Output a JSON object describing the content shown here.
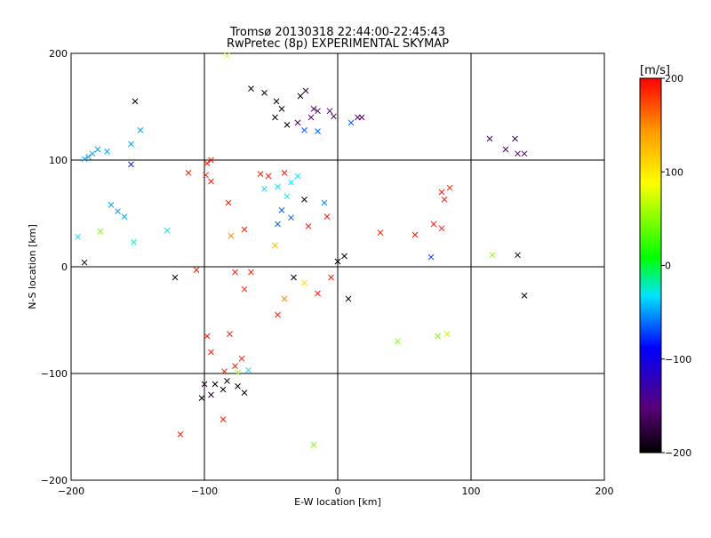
{
  "chart_data": {
    "type": "scatter",
    "title": "Tromsø 20130318 22:44:00-22:45:43",
    "subtitle": "RwPretec (8p) EXPERIMENTAL SKYMAP",
    "xlabel": "E-W location [km]",
    "ylabel": "N-S location [km]",
    "xlim": [
      -200,
      200
    ],
    "ylim": [
      -200,
      200
    ],
    "xticks": [
      -200,
      -100,
      0,
      100,
      200
    ],
    "yticks": [
      -200,
      -100,
      0,
      100,
      200
    ],
    "grid": true,
    "colorbar": {
      "label": "[m/s]",
      "range": [
        -200,
        200
      ],
      "ticks": [
        200,
        100,
        0,
        -100,
        -200
      ],
      "colormap": "rainbow (black-purple-blue-cyan-green-yellow-red)"
    },
    "cross_markers": [
      {
        "x": -65,
        "y": 167,
        "v": -200
      },
      {
        "x": -55,
        "y": 163,
        "v": -200
      },
      {
        "x": -46,
        "y": 155,
        "v": -200
      },
      {
        "x": -42,
        "y": 148,
        "v": -200
      },
      {
        "x": -47,
        "y": 140,
        "v": -200
      },
      {
        "x": -28,
        "y": 160,
        "v": -200
      },
      {
        "x": -24,
        "y": 165,
        "v": -180
      },
      {
        "x": -38,
        "y": 133,
        "v": -200
      },
      {
        "x": -30,
        "y": 135,
        "v": -160
      },
      {
        "x": -18,
        "y": 148,
        "v": -150
      },
      {
        "x": -15,
        "y": 146,
        "v": -150
      },
      {
        "x": -20,
        "y": 140,
        "v": -150
      },
      {
        "x": -6,
        "y": 146,
        "v": -150
      },
      {
        "x": -3,
        "y": 141,
        "v": -170
      },
      {
        "x": -25,
        "y": 128,
        "v": -70
      },
      {
        "x": -15,
        "y": 127,
        "v": -70
      },
      {
        "x": 10,
        "y": 135,
        "v": -70
      },
      {
        "x": 15,
        "y": 140,
        "v": -150
      },
      {
        "x": 18,
        "y": 140,
        "v": -160
      },
      {
        "x": -152,
        "y": 155,
        "v": -200
      },
      {
        "x": -155,
        "y": 96,
        "v": -90
      },
      {
        "x": -187,
        "y": 103,
        "v": -55
      },
      {
        "x": -184,
        "y": 106,
        "v": -55
      },
      {
        "x": -180,
        "y": 110,
        "v": -55
      },
      {
        "x": -190,
        "y": 101,
        "v": -55
      },
      {
        "x": -173,
        "y": 108,
        "v": -55
      },
      {
        "x": -155,
        "y": 115,
        "v": -55
      },
      {
        "x": -148,
        "y": 128,
        "v": -55
      },
      {
        "x": -170,
        "y": 58,
        "v": -55
      },
      {
        "x": -165,
        "y": 52,
        "v": -55
      },
      {
        "x": -160,
        "y": 47,
        "v": -55
      },
      {
        "x": -153,
        "y": 23,
        "v": -30
      },
      {
        "x": -128,
        "y": 34,
        "v": -30
      },
      {
        "x": -195,
        "y": 28,
        "v": -40
      },
      {
        "x": -178,
        "y": 33,
        "v": 40
      },
      {
        "x": -190,
        "y": 4,
        "v": -200
      },
      {
        "x": -122,
        "y": -10,
        "v": -200
      },
      {
        "x": -106,
        "y": -3,
        "v": 190
      },
      {
        "x": -98,
        "y": 97,
        "v": 190
      },
      {
        "x": -99,
        "y": 86,
        "v": 190
      },
      {
        "x": -95,
        "y": 80,
        "v": 190
      },
      {
        "x": -112,
        "y": 88,
        "v": 190
      },
      {
        "x": -58,
        "y": 87,
        "v": 190
      },
      {
        "x": -52,
        "y": 85,
        "v": 190
      },
      {
        "x": -40,
        "y": 88,
        "v": 190
      },
      {
        "x": -55,
        "y": 73,
        "v": -40
      },
      {
        "x": -45,
        "y": 75,
        "v": -40
      },
      {
        "x": -35,
        "y": 79,
        "v": -40
      },
      {
        "x": -30,
        "y": 85,
        "v": -40
      },
      {
        "x": -38,
        "y": 66,
        "v": -40
      },
      {
        "x": -25,
        "y": 63,
        "v": -200
      },
      {
        "x": -10,
        "y": 60,
        "v": -60
      },
      {
        "x": -8,
        "y": 47,
        "v": 190
      },
      {
        "x": -22,
        "y": 38,
        "v": 190
      },
      {
        "x": -45,
        "y": 40,
        "v": -70
      },
      {
        "x": -35,
        "y": 46,
        "v": -70
      },
      {
        "x": -42,
        "y": 53,
        "v": -70
      },
      {
        "x": -95,
        "y": 100,
        "v": 190
      },
      {
        "x": -82,
        "y": 60,
        "v": 190
      },
      {
        "x": -80,
        "y": 29,
        "v": 150
      },
      {
        "x": -77,
        "y": -5,
        "v": 190
      },
      {
        "x": -70,
        "y": 35,
        "v": 190
      },
      {
        "x": -47,
        "y": 20,
        "v": 120
      },
      {
        "x": -40,
        "y": -30,
        "v": 150
      },
      {
        "x": -45,
        "y": -45,
        "v": 190
      },
      {
        "x": -33,
        "y": -10,
        "v": -200
      },
      {
        "x": -25,
        "y": -15,
        "v": 100
      },
      {
        "x": -15,
        "y": -25,
        "v": 190
      },
      {
        "x": -5,
        "y": -10,
        "v": 190
      },
      {
        "x": 5,
        "y": 10,
        "v": -200
      },
      {
        "x": 0,
        "y": 5,
        "v": -200
      },
      {
        "x": 8,
        "y": -30,
        "v": -200
      },
      {
        "x": 32,
        "y": 32,
        "v": 190
      },
      {
        "x": 58,
        "y": 30,
        "v": 190
      },
      {
        "x": 72,
        "y": 40,
        "v": 190
      },
      {
        "x": 80,
        "y": 63,
        "v": 190
      },
      {
        "x": 78,
        "y": 70,
        "v": 190
      },
      {
        "x": 84,
        "y": 74,
        "v": 190
      },
      {
        "x": 78,
        "y": 36,
        "v": 190
      },
      {
        "x": 70,
        "y": 9,
        "v": -80
      },
      {
        "x": 116,
        "y": 11,
        "v": 40
      },
      {
        "x": 135,
        "y": 11,
        "v": -200
      },
      {
        "x": 140,
        "y": -27,
        "v": -200
      },
      {
        "x": 114,
        "y": 120,
        "v": -160
      },
      {
        "x": 126,
        "y": 110,
        "v": -160
      },
      {
        "x": 133,
        "y": 120,
        "v": -160
      },
      {
        "x": 135,
        "y": 106,
        "v": -160
      },
      {
        "x": 140,
        "y": 106,
        "v": -160
      },
      {
        "x": -65,
        "y": -5,
        "v": 190
      },
      {
        "x": -70,
        "y": -21,
        "v": 190
      },
      {
        "x": -95,
        "y": -80,
        "v": 190
      },
      {
        "x": -98,
        "y": -65,
        "v": 190
      },
      {
        "x": -85,
        "y": -98,
        "v": 190
      },
      {
        "x": -77,
        "y": -93,
        "v": 190
      },
      {
        "x": -92,
        "y": -110,
        "v": -200
      },
      {
        "x": -86,
        "y": -115,
        "v": -200
      },
      {
        "x": -83,
        "y": -107,
        "v": -200
      },
      {
        "x": -75,
        "y": -112,
        "v": -200
      },
      {
        "x": -70,
        "y": -118,
        "v": -200
      },
      {
        "x": -100,
        "y": -110,
        "v": -180
      },
      {
        "x": -95,
        "y": -120,
        "v": -180
      },
      {
        "x": -102,
        "y": -123,
        "v": -200
      },
      {
        "x": -75,
        "y": -99,
        "v": 40
      },
      {
        "x": -67,
        "y": -97,
        "v": -40
      },
      {
        "x": -72,
        "y": -86,
        "v": 190
      },
      {
        "x": -86,
        "y": -143,
        "v": 190
      },
      {
        "x": -118,
        "y": -157,
        "v": 190
      },
      {
        "x": -83,
        "y": 198,
        "v": 90
      },
      {
        "x": -18,
        "y": -167,
        "v": 40
      },
      {
        "x": -81,
        "y": -63,
        "v": 190
      },
      {
        "x": 75,
        "y": -65,
        "v": 40
      },
      {
        "x": 82,
        "y": -63,
        "v": 60
      },
      {
        "x": 45,
        "y": -70,
        "v": 40
      }
    ]
  }
}
